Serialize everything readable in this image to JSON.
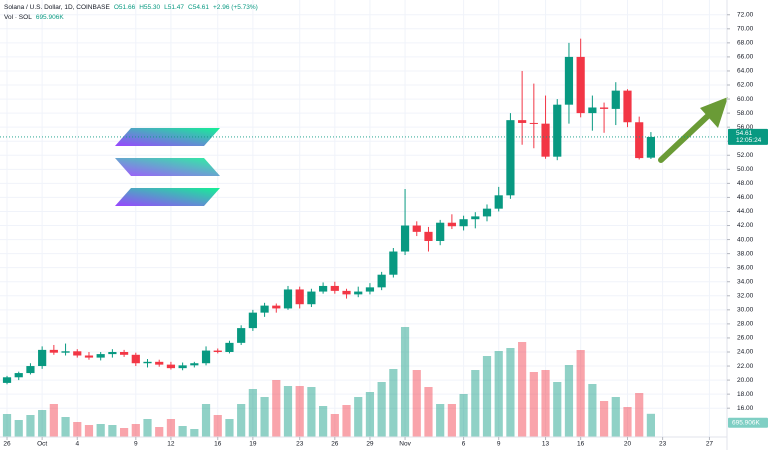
{
  "chart_data": {
    "type": "candlestick",
    "header": {
      "title": "Solana / U.S. Dollar, 1D, COINBASE",
      "ohlc": [
        "O51.66",
        "H55.30",
        "L51.47",
        "C54.61",
        "+2.96 (+5.73%)"
      ]
    },
    "colors": {
      "up": "#089981",
      "down": "#f23645"
    },
    "grid": true,
    "open": [
      19.6,
      20.4,
      21.0,
      22.0,
      24.3,
      23.9,
      24.1,
      23.5,
      23.2,
      23.7,
      24.0,
      23.6,
      22.4,
      22.6,
      22.2,
      21.7,
      22.1,
      22.4,
      24.2,
      24.0,
      25.3,
      27.4,
      29.6,
      30.6,
      30.2,
      32.9,
      30.8,
      32.6,
      33.4,
      32.7,
      32.2,
      32.6,
      33.2,
      35.0,
      38.3,
      42.0,
      41.1,
      39.8,
      42.4,
      41.9,
      42.9,
      43.3,
      44.4,
      46.3,
      57.0,
      56.6,
      56.5,
      51.8,
      59.2,
      66.0,
      58.0,
      58.8,
      58.6,
      61.2,
      56.7,
      51.66
    ],
    "high": [
      20.6,
      21.2,
      22.4,
      24.8,
      25.0,
      25.2,
      24.4,
      24.0,
      24.0,
      24.4,
      24.3,
      23.9,
      23.0,
      22.9,
      22.6,
      22.5,
      22.6,
      24.8,
      24.5,
      25.6,
      27.8,
      30.0,
      31.0,
      30.9,
      33.4,
      33.3,
      33.0,
      33.9,
      34.0,
      33.0,
      33.3,
      33.8,
      35.4,
      38.8,
      47.2,
      42.6,
      41.8,
      42.8,
      43.6,
      43.4,
      43.9,
      45.0,
      47.5,
      58.0,
      64.0,
      62.2,
      60.5,
      60.0,
      68.0,
      68.6,
      60.5,
      59.5,
      62.4,
      61.4,
      57.5,
      55.3
    ],
    "low": [
      19.4,
      20.0,
      20.8,
      21.6,
      23.6,
      23.5,
      23.2,
      22.9,
      22.8,
      23.2,
      23.3,
      22.0,
      21.8,
      21.9,
      21.5,
      21.4,
      21.8,
      22.1,
      23.8,
      23.8,
      25.0,
      27.0,
      29.0,
      29.6,
      30.0,
      30.2,
      30.4,
      32.3,
      32.3,
      31.6,
      31.8,
      32.2,
      32.8,
      34.6,
      37.8,
      40.5,
      38.3,
      39.2,
      41.5,
      41.3,
      41.6,
      42.6,
      44.0,
      45.8,
      53.5,
      53.0,
      51.5,
      51.3,
      56.5,
      57.4,
      55.5,
      55.2,
      56.3,
      56.0,
      51.4,
      51.47
    ],
    "close": [
      20.4,
      21.0,
      22.0,
      24.3,
      23.9,
      24.1,
      23.5,
      23.2,
      23.7,
      24.0,
      23.6,
      22.4,
      22.6,
      22.2,
      21.7,
      22.1,
      22.4,
      24.2,
      24.0,
      25.3,
      27.4,
      29.6,
      30.6,
      30.2,
      32.9,
      30.8,
      32.6,
      33.4,
      32.7,
      32.2,
      32.6,
      33.2,
      35.0,
      38.3,
      42.0,
      41.1,
      39.8,
      42.4,
      41.9,
      42.9,
      43.3,
      44.4,
      46.3,
      57.0,
      56.6,
      56.5,
      51.8,
      59.2,
      66.0,
      58.0,
      58.8,
      58.6,
      61.2,
      56.7,
      51.6,
      54.61
    ],
    "volume": {
      "name": "Vol · SOL",
      "last_label": "695.906K",
      "values": [
        690,
        510,
        660,
        810,
        990,
        600,
        450,
        360,
        390,
        360,
        270,
        390,
        540,
        300,
        540,
        330,
        240,
        990,
        660,
        540,
        990,
        1440,
        1200,
        1710,
        1530,
        1530,
        1500,
        930,
        690,
        960,
        1200,
        1350,
        1650,
        2040,
        3300,
        2010,
        1500,
        990,
        990,
        1290,
        2010,
        2430,
        2580,
        2670,
        2850,
        1950,
        2010,
        1650,
        2160,
        2610,
        1590,
        1080,
        1200,
        900,
        1320,
        695.906
      ]
    },
    "last_price": {
      "value": 54.61,
      "label": "54.61",
      "countdown": "12:05:24"
    },
    "xlim": [
      -0.6,
      61.5
    ],
    "xticks": [
      {
        "value": 0,
        "label": "26"
      },
      {
        "value": 3,
        "label": "Oct"
      },
      {
        "value": 6,
        "label": "4"
      },
      {
        "value": 11,
        "label": "9"
      },
      {
        "value": 14,
        "label": "12"
      },
      {
        "value": 18,
        "label": "16"
      },
      {
        "value": 21,
        "label": "19"
      },
      {
        "value": 25,
        "label": "23"
      },
      {
        "value": 28,
        "label": "26"
      },
      {
        "value": 31,
        "label": "29"
      },
      {
        "value": 34,
        "label": "Nov"
      },
      {
        "value": 39,
        "label": "6"
      },
      {
        "value": 42,
        "label": "9"
      },
      {
        "value": 46,
        "label": "13"
      },
      {
        "value": 49,
        "label": "16"
      },
      {
        "value": 53,
        "label": "20"
      },
      {
        "value": 56,
        "label": "23"
      },
      {
        "value": 60,
        "label": "27"
      }
    ],
    "ylim": [
      11.9,
      74.1
    ],
    "yticks": [
      {
        "value": 16,
        "label": "16.00"
      },
      {
        "value": 18,
        "label": "18.00"
      },
      {
        "value": 20,
        "label": "20.00"
      },
      {
        "value": 22,
        "label": "22.00"
      },
      {
        "value": 24,
        "label": "24.00"
      },
      {
        "value": 26,
        "label": "26.00"
      },
      {
        "value": 28,
        "label": "28.00"
      },
      {
        "value": 30,
        "label": "30.00"
      },
      {
        "value": 32,
        "label": "32.00"
      },
      {
        "value": 34,
        "label": "34.00"
      },
      {
        "value": 36,
        "label": "36.00"
      },
      {
        "value": 38,
        "label": "38.00"
      },
      {
        "value": 40,
        "label": "40.00"
      },
      {
        "value": 42,
        "label": "42.00"
      },
      {
        "value": 44,
        "label": "44.00"
      },
      {
        "value": 46,
        "label": "46.00"
      },
      {
        "value": 48,
        "label": "48.00"
      },
      {
        "value": 50,
        "label": "50.00"
      },
      {
        "value": 52,
        "label": "52.00"
      },
      {
        "value": 54,
        "label": "54.00"
      },
      {
        "value": 56,
        "label": "56.00"
      },
      {
        "value": 58,
        "label": "58.00"
      },
      {
        "value": 60,
        "label": "60.00"
      },
      {
        "value": 62,
        "label": "62.00"
      },
      {
        "value": 64,
        "label": "64.00"
      },
      {
        "value": 66,
        "label": "66.00"
      },
      {
        "value": 68,
        "label": "68.00"
      },
      {
        "value": 70,
        "label": "70.00"
      },
      {
        "value": 72,
        "label": "72.00"
      }
    ]
  }
}
